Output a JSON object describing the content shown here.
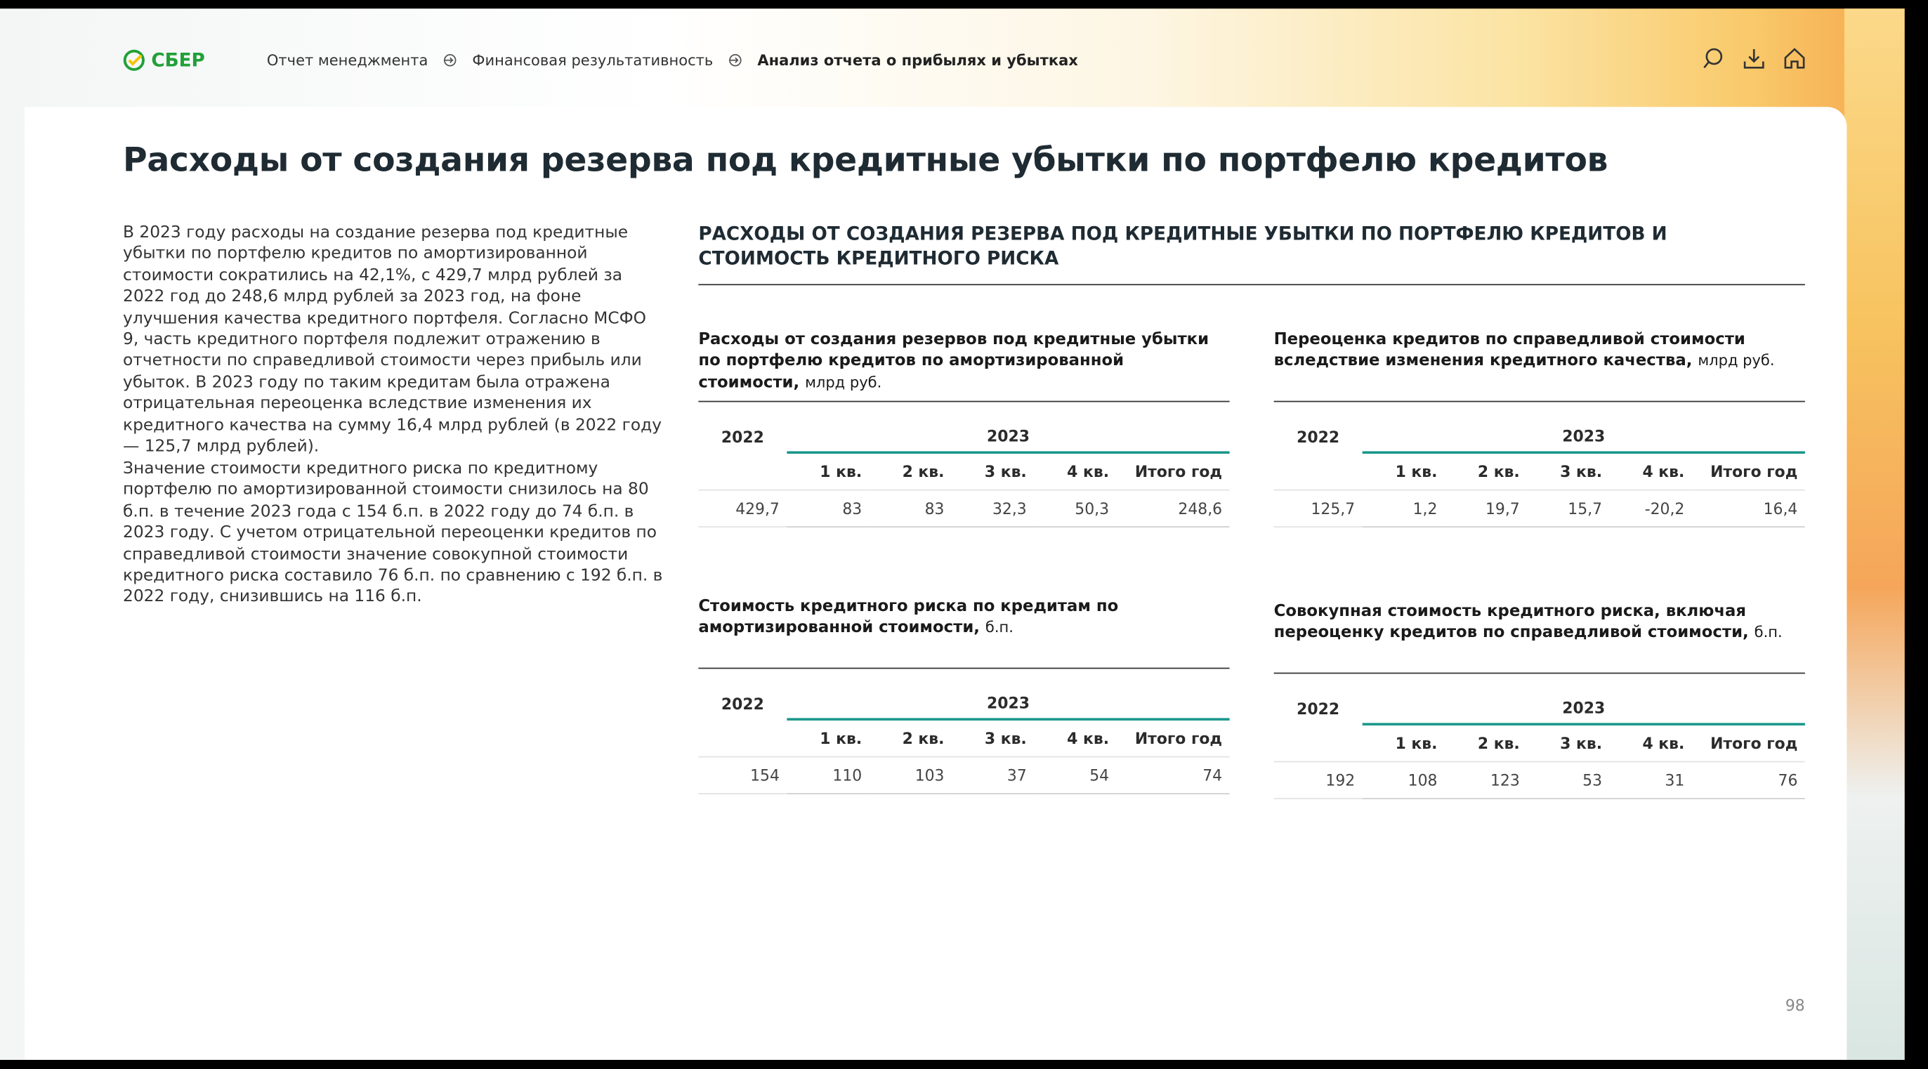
{
  "header": {
    "logo": "СБЕР",
    "breadcrumbs": [
      "Отчет менеджмента",
      "Финансовая результативность",
      "Анализ отчета о прибылях и убытках"
    ]
  },
  "title": "Расходы от создания резерва под кредитные убытки по портфелю кредитов",
  "paragraphs": [
    "В 2023 году расходы на создание резерва под кредитные убытки по портфелю кредитов по амортизированной стоимости сократились на 42,1%, с 429,7 млрд рублей за 2022 год до 248,6 млрд рублей за 2023 год, на фоне улучшения качества кредитного портфеля. Согласно МСФО 9, часть кредитного портфеля подлежит отражению в отчетности по справедливой стоимости через прибыль или убыток. В 2023 году по таким кредитам была отражена отрицательная переоценка вследствие изменения их кредитного качества на сумму 16,4 млрд рублей (в 2022 году — 125,7 млрд рублей).",
    "Значение стоимости кредитного риска по кредитному портфелю по амортизированной стоимости снизилось на 80 б.п. в течение 2023 года с 154 б.п. в 2022 году до 74 б.п. в 2023 году. С учетом отрицательной переоценки кредитов по справедливой стоимости значение совокупной стоимости кредитного риска составило 76 б.п. по сравнению с 192 б.п. в 2022 году, снизившись на 116 б.п."
  ],
  "section_title": "РАСХОДЫ ОТ СОЗДАНИЯ РЕЗЕРВА ПОД КРЕДИТНЫЕ УБЫТКИ ПО ПОРТФЕЛЮ КРЕДИТОВ И СТОИМОСТЬ КРЕДИТНОГО РИСКА",
  "tables": [
    {
      "title": "Расходы от создания резервов под кредитные убытки по портфелю кредитов по амортизированной стоимости,",
      "unit": "млрд руб.",
      "years": [
        "2022",
        "2023"
      ],
      "columns": [
        "1 кв.",
        "2 кв.",
        "3 кв.",
        "4 кв.",
        "Итого год"
      ],
      "row": [
        "429,7",
        "83",
        "83",
        "32,3",
        "50,3",
        "248,6"
      ]
    },
    {
      "title": "Переоценка кредитов по справедливой стоимости вследствие изменения кредитного качества,",
      "unit": "млрд руб.",
      "years": [
        "2022",
        "2023"
      ],
      "columns": [
        "1 кв.",
        "2 кв.",
        "3 кв.",
        "4 кв.",
        "Итого год"
      ],
      "row": [
        "125,7",
        "1,2",
        "19,7",
        "15,7",
        "-20,2",
        "16,4"
      ]
    },
    {
      "title": "Стоимость кредитного риска по кредитам по амортизированной стоимости,",
      "unit": "б.п.",
      "years": [
        "2022",
        "2023"
      ],
      "columns": [
        "1 кв.",
        "2 кв.",
        "3 кв.",
        "4 кв.",
        "Итого год"
      ],
      "row": [
        "154",
        "110",
        "103",
        "37",
        "54",
        "74"
      ]
    },
    {
      "title": "Совокупная стоимость кредитного риска, включая переоценку кредитов по справедливой стоимости,",
      "unit": "б.п.",
      "years": [
        "2022",
        "2023"
      ],
      "columns": [
        "1 кв.",
        "2 кв.",
        "3 кв.",
        "4 кв.",
        "Итого год"
      ],
      "row": [
        "192",
        "108",
        "123",
        "53",
        "31",
        "76"
      ]
    }
  ],
  "page_number": "98"
}
